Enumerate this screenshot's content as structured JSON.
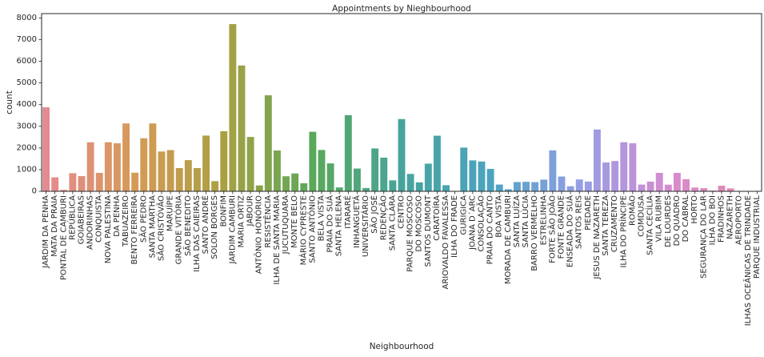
{
  "chart_data": {
    "type": "bar",
    "title": "Appointments by Nieghbourhood",
    "xlabel": "Neighbourhood",
    "ylabel": "count",
    "ylim": [
      0,
      8200
    ],
    "yticks": [
      0,
      1000,
      2000,
      3000,
      4000,
      5000,
      6000,
      7000,
      8000
    ],
    "grid": false,
    "legend": "none",
    "palette": [
      "#e48a91",
      "#d69a57",
      "#a9a043",
      "#5aa85a",
      "#47a49c",
      "#4ca3bf",
      "#949fe6",
      "#d68bd0",
      "#e58aa4"
    ],
    "categories": [
      "JARDIM DA PENHA",
      "MATA DA PRAIA",
      "PONTAL DE CAMBURI",
      "REPÚBLICA",
      "GOIABEIRAS",
      "ANDORINHAS",
      "CONQUISTA",
      "NOVA PALESTINA",
      "DA PENHA",
      "TABUAZEIRO",
      "BENTO FERREIRA",
      "SÃO PEDRO",
      "SANTA MARTHA",
      "SÃO CRISTÓVÃO",
      "MARUÍPE",
      "GRANDE VITÓRIA",
      "SÃO BENEDITO",
      "ILHA DAS CAIEIRAS",
      "SANTO ANDRÉ",
      "SOLON BORGES",
      "BONFIM",
      "JARDIM CAMBURI",
      "MARIA ORTIZ",
      "JABOUR",
      "ANTÔNIO HONÓRIO",
      "RESISTÊNCIA",
      "ILHA DE SANTA MARIA",
      "JUCUTUQUARA",
      "MONTE BELO",
      "MÁRIO CYPRESTE",
      "SANTO ANTÔNIO",
      "BELA VISTA",
      "PRAIA DO SUÁ",
      "SANTA HELENA",
      "ITARARÉ",
      "INHANGUETÁ",
      "UNIVERSITÁRIO",
      "SÃO JOSÉ",
      "REDENÇÃO",
      "SANTA CLARA",
      "CENTRO",
      "PARQUE MOSCOSO",
      "DO MOSCOSO",
      "SANTOS DUMONT",
      "CARATOÍRA",
      "ARIOVALDO FAVALESSA",
      "ILHA DO FRADE",
      "GURIGICA",
      "JOANA D´ARC",
      "CONSOLAÇÃO",
      "PRAIA DO CANTO",
      "BOA VISTA",
      "MORADA DE CAMBURI",
      "SANTA LUÍZA",
      "SANTA LÚCIA",
      "BARRO VERMELHO",
      "ESTRELINHA",
      "FORTE SÃO JOÃO",
      "FONTE GRANDE",
      "ENSEADA DO SUÁ",
      "SANTOS REIS",
      "PIEDADE",
      "JESUS DE NAZARETH",
      "SANTA TEREZA",
      "CRUZAMENTO",
      "ILHA DO PRÍNCIPE",
      "ROMÃO",
      "COMDUSA",
      "SANTA CECÍLIA",
      "VILA RUBIM",
      "DE LOURDES",
      "DO QUADRO",
      "DO CABRAL",
      "HORTO",
      "SEGURANÇA DO LAR",
      "ILHA DO BOI",
      "FRADINHOS",
      "NAZARETH",
      "AEROPORTO",
      "ILHAS OCEÂNICAS DE TRINDADE",
      "PARQUE INDUSTRIAL"
    ],
    "values": [
      3877,
      644,
      69,
      835,
      700,
      2262,
      849,
      2264,
      2217,
      3132,
      858,
      2448,
      3131,
      1836,
      1902,
      1071,
      1439,
      1071,
      2571,
      469,
      2773,
      7717,
      5805,
      2509,
      271,
      4431,
      1885,
      694,
      824,
      371,
      2746,
      1907,
      1288,
      178,
      3514,
      1050,
      152,
      1977,
      1553,
      506,
      3334,
      802,
      413,
      1276,
      2565,
      282,
      10,
      2018,
      1427,
      1376,
      1035,
      312,
      96,
      428,
      438,
      423,
      538,
      1889,
      682,
      235,
      547,
      452,
      2853,
      1332,
      1398,
      2266,
      2215,
      310,
      448,
      851,
      305,
      849,
      560,
      175,
      145,
      35,
      258,
      135,
      8,
      2,
      1
    ]
  }
}
